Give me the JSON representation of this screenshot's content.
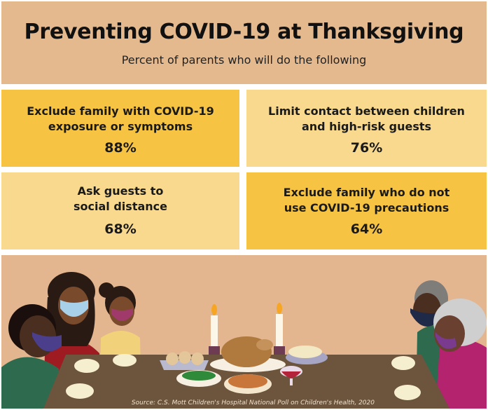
{
  "header": {
    "title": "Preventing COVID-19 at Thanksgiving",
    "subtitle": "Percent of parents who will  do the following"
  },
  "cards": [
    {
      "label_line1": "Exclude family with COVID-19",
      "label_line2": "exposure or symptoms",
      "value": "88%"
    },
    {
      "label_line1": "Limit contact between children",
      "label_line2": "and high-risk guests",
      "value": "76%"
    },
    {
      "label_line1": "Ask guests to",
      "label_line2": "social distance",
      "value": "68%"
    },
    {
      "label_line1": "Exclude family who do not",
      "label_line2": "use COVID-19 precautions",
      "value": "64%"
    }
  ],
  "colors": {
    "header_bg": "#e5b98e",
    "card_strong": "#f6c342",
    "card_light": "#f8d98e",
    "scene_bg": "#e3b690",
    "table": "#6d543c"
  },
  "illustration": {
    "source": "Source: C.S. Mott Children's Hospital National Poll on Children's Health, 2020"
  }
}
